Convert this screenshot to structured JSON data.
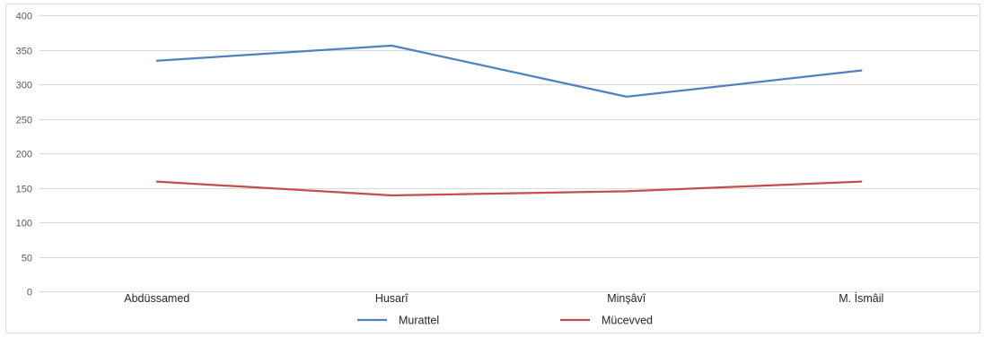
{
  "chart_data": {
    "type": "line",
    "categories": [
      "Abdüssamed",
      "Husarî",
      "Minşâvî",
      "M. İsmâil"
    ],
    "series": [
      {
        "name": "Murattel",
        "values": [
          334,
          356,
          282,
          320
        ],
        "color": "#4f81bd"
      },
      {
        "name": "Mücevved",
        "values": [
          159,
          139,
          145,
          159
        ],
        "color": "#c0504d"
      }
    ],
    "ylim": [
      0,
      400
    ],
    "yticks": [
      0,
      50,
      100,
      150,
      200,
      250,
      300,
      350,
      400
    ],
    "grid": true,
    "legend_position": "bottom"
  }
}
